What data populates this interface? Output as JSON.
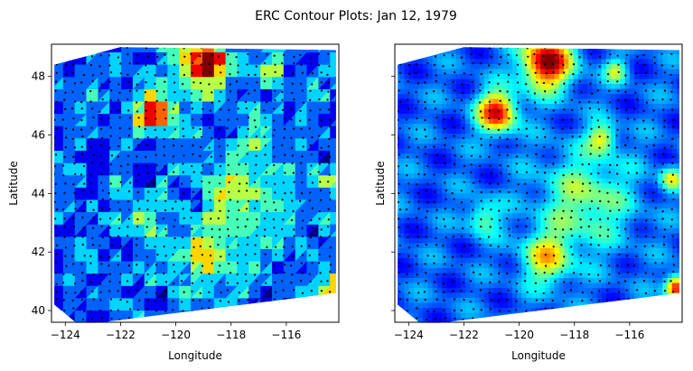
{
  "figure": {
    "title": "ERC Contour Plots: Jan 12, 1979"
  },
  "chart_data": [
    {
      "type": "heatmap",
      "variant": "tricontour-filled-triangulation",
      "title": "",
      "xlabel": "Longitude",
      "ylabel": "Latitude",
      "xlim": [
        -124.5,
        -114.1
      ],
      "ylim": [
        39.6,
        49.1
      ],
      "xticks": [
        -124,
        -122,
        -120,
        -118,
        -116
      ],
      "yticks": [
        40,
        42,
        44,
        46,
        48
      ],
      "xtick_labels": [
        "−124",
        "−122",
        "−120",
        "−118",
        "−116"
      ],
      "ytick_labels": [
        "40",
        "42",
        "44",
        "46",
        "48"
      ],
      "colormap": "jet",
      "grid": false,
      "station_markers": true,
      "domain_corners": [
        [
          -124.4,
          48.4
        ],
        [
          -122.0,
          49.0
        ],
        [
          -114.2,
          48.9
        ],
        [
          -114.2,
          40.6
        ],
        [
          -123.5,
          39.5
        ],
        [
          -124.4,
          40.2
        ]
      ],
      "hotspots": [
        {
          "lon": -119.0,
          "lat": 48.5,
          "level": 1.0,
          "spread": 0.9
        },
        {
          "lon": -120.8,
          "lat": 46.8,
          "level": 0.9,
          "spread": 0.7
        },
        {
          "lon": -114.3,
          "lat": 40.8,
          "level": 0.95,
          "spread": 0.4
        },
        {
          "lon": -119.0,
          "lat": 41.8,
          "level": 0.62,
          "spread": 0.9
        },
        {
          "lon": -117.6,
          "lat": 43.8,
          "level": 0.52,
          "spread": 1.6
        },
        {
          "lon": -117.0,
          "lat": 45.9,
          "level": 0.6,
          "spread": 0.5
        },
        {
          "lon": -116.5,
          "lat": 48.2,
          "level": 0.55,
          "spread": 0.4
        },
        {
          "lon": -114.5,
          "lat": 44.5,
          "level": 0.6,
          "spread": 0.4
        },
        {
          "lon": -121.3,
          "lat": 43.2,
          "level": 0.5,
          "spread": 0.6
        }
      ]
    },
    {
      "type": "heatmap",
      "variant": "tricontour-filled-smooth",
      "title": "",
      "xlabel": "Longitude",
      "ylabel": "Latitude",
      "xlim": [
        -124.5,
        -114.1
      ],
      "ylim": [
        39.6,
        49.1
      ],
      "xticks": [
        -124,
        -122,
        -120,
        -118,
        -116
      ],
      "yticks": [
        40,
        42,
        44,
        46,
        48
      ],
      "xtick_labels": [
        "−124",
        "−122",
        "−120",
        "−118",
        "−116"
      ],
      "ytick_labels": [
        "",
        "",
        "",
        "",
        ""
      ],
      "colormap": "jet",
      "grid": false,
      "station_markers": true,
      "domain_corners": [
        [
          -124.4,
          48.4
        ],
        [
          -122.0,
          49.0
        ],
        [
          -114.2,
          48.9
        ],
        [
          -114.2,
          40.6
        ],
        [
          -123.5,
          39.5
        ],
        [
          -124.4,
          40.2
        ]
      ],
      "hotspots": [
        {
          "lon": -119.0,
          "lat": 48.5,
          "level": 1.0,
          "spread": 0.9
        },
        {
          "lon": -120.8,
          "lat": 46.8,
          "level": 0.9,
          "spread": 0.7
        },
        {
          "lon": -114.3,
          "lat": 40.8,
          "level": 0.95,
          "spread": 0.4
        },
        {
          "lon": -119.0,
          "lat": 41.8,
          "level": 0.62,
          "spread": 0.9
        },
        {
          "lon": -117.6,
          "lat": 43.8,
          "level": 0.52,
          "spread": 1.6
        },
        {
          "lon": -117.0,
          "lat": 45.9,
          "level": 0.6,
          "spread": 0.5
        },
        {
          "lon": -116.5,
          "lat": 48.2,
          "level": 0.55,
          "spread": 0.4
        },
        {
          "lon": -114.5,
          "lat": 44.5,
          "level": 0.6,
          "spread": 0.4
        },
        {
          "lon": -121.3,
          "lat": 43.2,
          "level": 0.5,
          "spread": 0.6
        }
      ]
    }
  ]
}
